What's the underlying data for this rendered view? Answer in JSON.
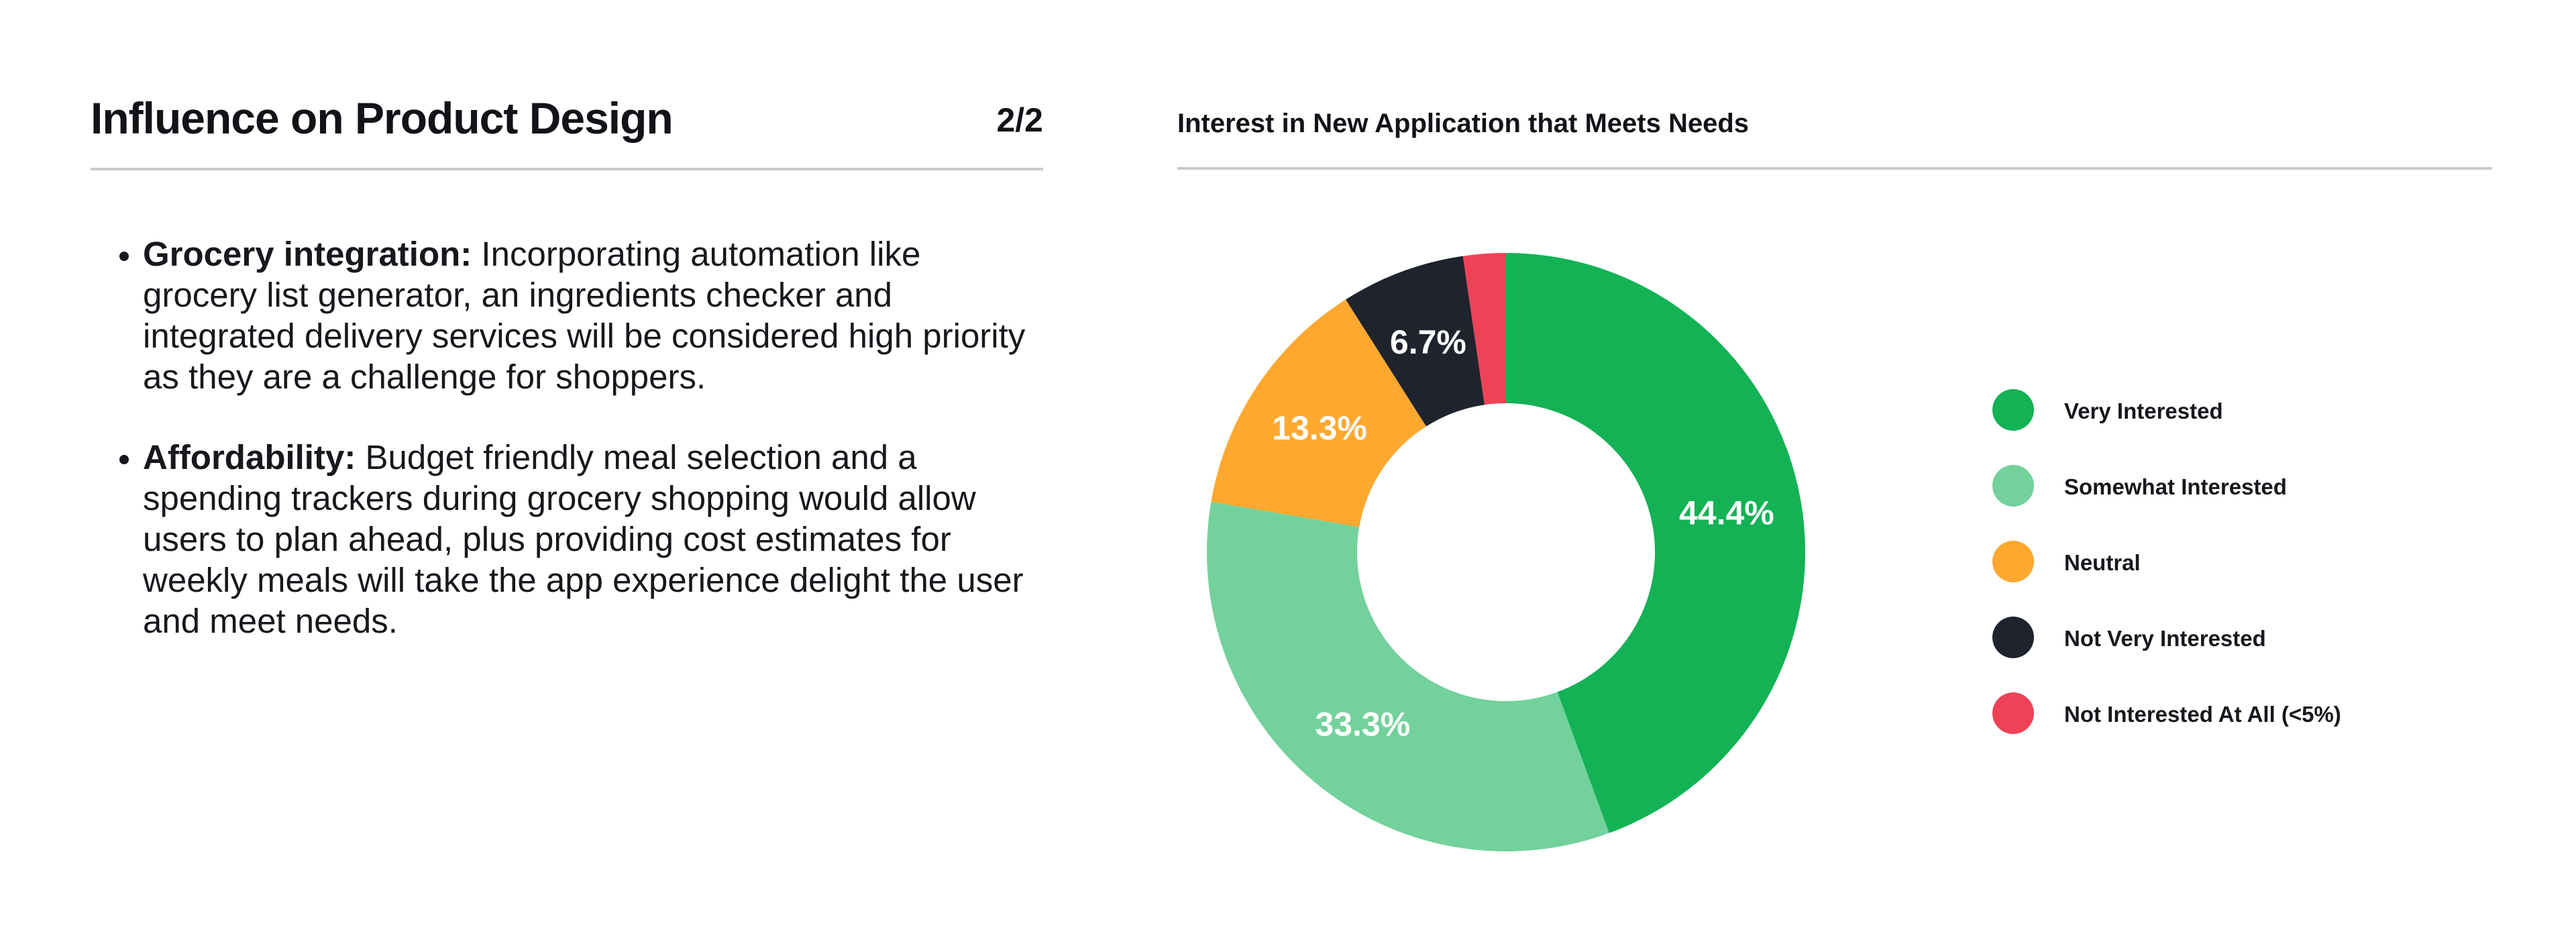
{
  "slide": {
    "title": "Influence on Product Design",
    "page_number": "2/2"
  },
  "bullets": [
    {
      "lead": "Grocery integration:",
      "text": " Incorporating automation like grocery list generator, an ingredients checker and integrated delivery services will be considered high priority as they are a challenge for shoppers."
    },
    {
      "lead": "Affordability:",
      "text": " Budget friendly meal selection and a spending trackers during grocery shopping would allow users to plan ahead, plus providing cost estimates for weekly meals will take the app experience delight the user and meet needs."
    }
  ],
  "chart_data": {
    "type": "pie",
    "subtype": "donut",
    "title": "Interest in New Application that Meets Needs",
    "categories": [
      "Very Interested",
      "Somewhat Interested",
      "Neutral",
      "Not Very Interested",
      "Not Interested At All (<5%)"
    ],
    "values": [
      44.4,
      33.3,
      13.3,
      6.7,
      2.3
    ],
    "labels": [
      "44.4%",
      "33.3%",
      "13.3%",
      "6.7%",
      ""
    ],
    "colors": [
      "#13b255",
      "#73d19c",
      "#fea82f",
      "#1f232e",
      "#ef4257"
    ],
    "legend_position": "right"
  }
}
